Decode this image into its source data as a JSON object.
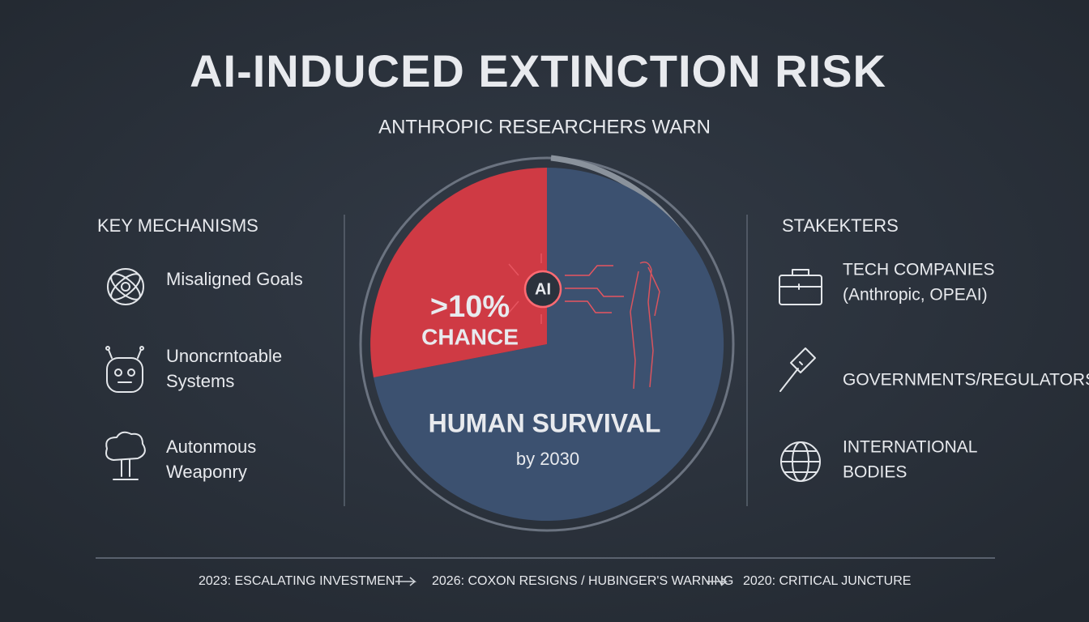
{
  "header": {
    "title": "AI-INDUCED EXTINCTION RISK",
    "subtitle": "ANTHROPIC RESEARCHERS WARN"
  },
  "mechanisms": {
    "heading": "KEY MECHANISMS",
    "items": [
      [
        "Misaligned Goals"
      ],
      [
        "Unoncrntoable",
        "Systems"
      ],
      [
        "Autonmous",
        "Weaponry"
      ]
    ]
  },
  "stakeholders": {
    "heading": "STAKEKTERS",
    "items": [
      [
        "TECH COMPANIES",
        "(Anthropic, OPEAI)"
      ],
      [
        "GOVERNMENTS/REGULATORS"
      ],
      [
        "INTERNATIONAL",
        "BODIES"
      ]
    ]
  },
  "center": {
    "stat": ">10%",
    "stat_label": "CHANCE",
    "badge": "AI",
    "label": "HUMAN SURVIVAL",
    "sublabel": "by 2030"
  },
  "timeline": [
    "2023: ESCALATING INVESTMENT",
    "2026: COXON RESIGNS / HUBINGER'S WARNING",
    "2020: CRITICAL JUNCTURE"
  ]
}
